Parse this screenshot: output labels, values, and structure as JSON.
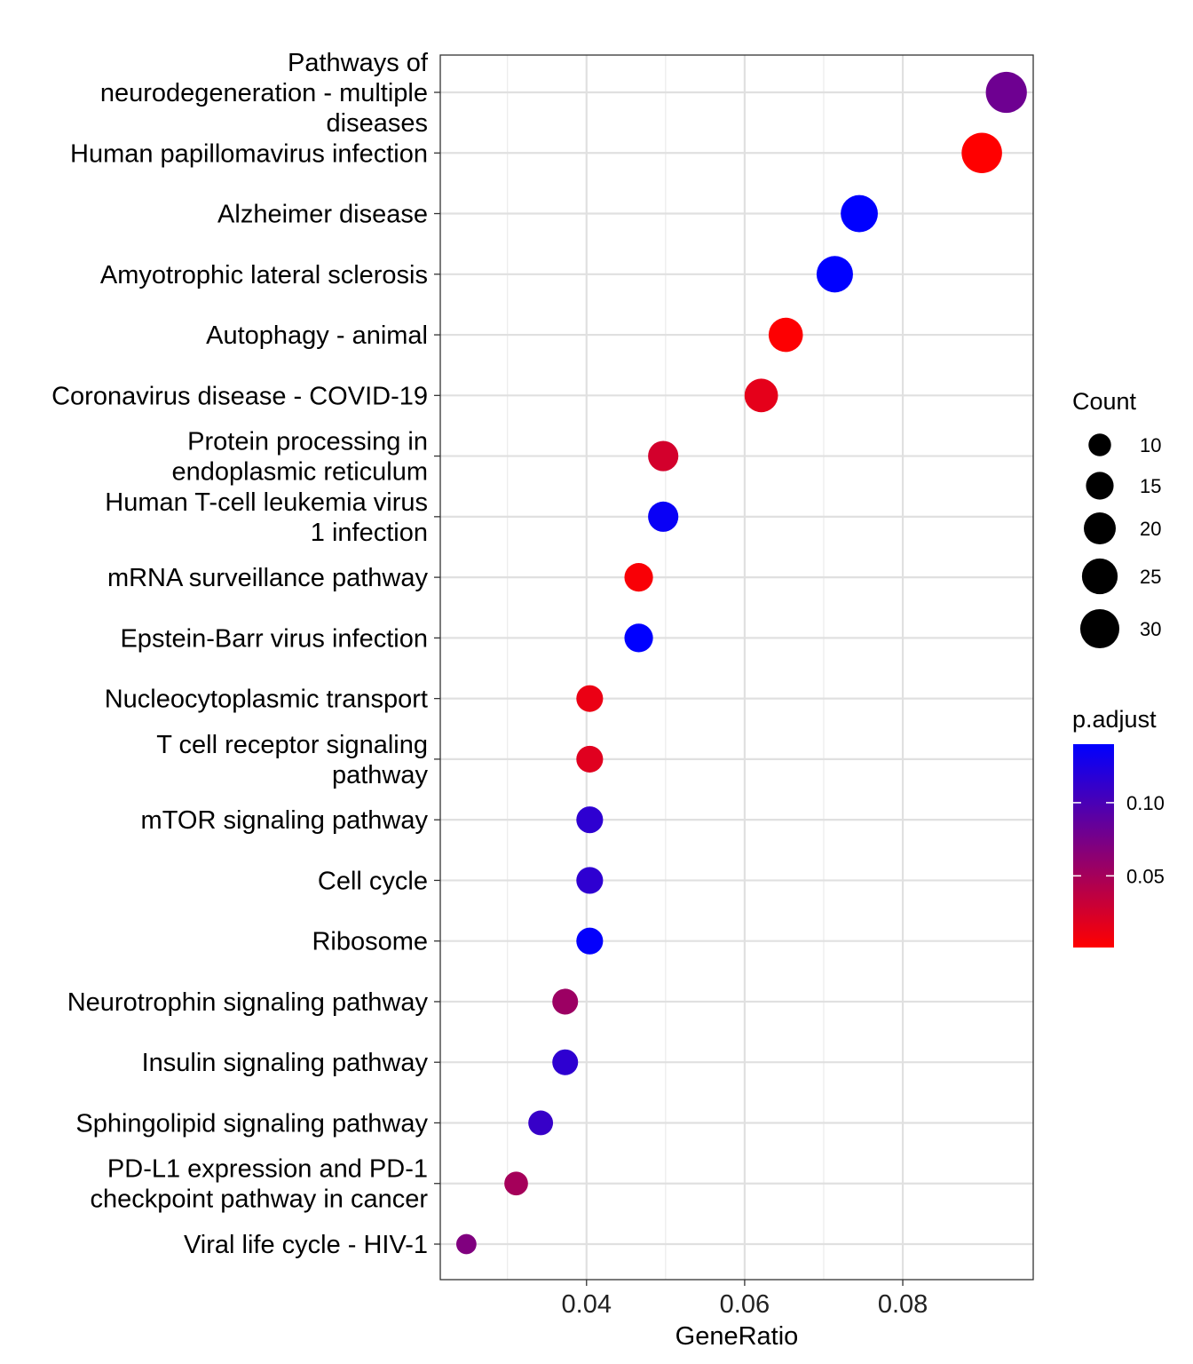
{
  "chart_data": {
    "type": "scatter",
    "title": "",
    "xlabel": "GeneRatio",
    "ylabel": "",
    "xlim": [
      0.0215,
      0.0965
    ],
    "x_ticks": [
      "0.04",
      "0.06",
      "0.08"
    ],
    "x_tick_values": [
      0.04,
      0.06,
      0.08
    ],
    "grid": true,
    "legend_placement": "right",
    "points": [
      {
        "label": [
          "Pathways of",
          "neurodegeneration - multiple",
          "diseases"
        ],
        "x": 0.0931,
        "count": 33,
        "p_adjust": 0.08
      },
      {
        "label": [
          "Human papillomavirus infection"
        ],
        "x": 0.09,
        "count": 32,
        "p_adjust": 0.001
      },
      {
        "label": [
          "Alzheimer disease"
        ],
        "x": 0.0745,
        "count": 27,
        "p_adjust": 0.14
      },
      {
        "label": [
          "Amyotrophic lateral sclerosis"
        ],
        "x": 0.0714,
        "count": 26,
        "p_adjust": 0.14
      },
      {
        "label": [
          "Autophagy - animal"
        ],
        "x": 0.0652,
        "count": 23,
        "p_adjust": 0.002
      },
      {
        "label": [
          "Coronavirus disease - COVID-19"
        ],
        "x": 0.0621,
        "count": 22,
        "p_adjust": 0.015
      },
      {
        "label": [
          "Protein processing in",
          "endoplasmic reticulum"
        ],
        "x": 0.0497,
        "count": 18,
        "p_adjust": 0.025
      },
      {
        "label": [
          "Human T-cell leukemia virus",
          "1 infection"
        ],
        "x": 0.0497,
        "count": 18,
        "p_adjust": 0.135
      },
      {
        "label": [
          "mRNA surveillance pathway"
        ],
        "x": 0.0466,
        "count": 16,
        "p_adjust": 0.004
      },
      {
        "label": [
          "Epstein-Barr virus infection"
        ],
        "x": 0.0466,
        "count": 16,
        "p_adjust": 0.14
      },
      {
        "label": [
          "Nucleocytoplasmic transport"
        ],
        "x": 0.0404,
        "count": 14,
        "p_adjust": 0.012
      },
      {
        "label": [
          "T cell receptor signaling",
          "pathway"
        ],
        "x": 0.0404,
        "count": 14,
        "p_adjust": 0.018
      },
      {
        "label": [
          "mTOR signaling pathway"
        ],
        "x": 0.0404,
        "count": 14,
        "p_adjust": 0.115
      },
      {
        "label": [
          "Cell cycle"
        ],
        "x": 0.0404,
        "count": 14,
        "p_adjust": 0.115
      },
      {
        "label": [
          "Ribosome"
        ],
        "x": 0.0404,
        "count": 14,
        "p_adjust": 0.138
      },
      {
        "label": [
          "Neurotrophin signaling pathway"
        ],
        "x": 0.0373,
        "count": 13,
        "p_adjust": 0.055
      },
      {
        "label": [
          "Insulin signaling pathway"
        ],
        "x": 0.0373,
        "count": 13,
        "p_adjust": 0.115
      },
      {
        "label": [
          "Sphingolipid signaling pathway"
        ],
        "x": 0.0342,
        "count": 12,
        "p_adjust": 0.11
      },
      {
        "label": [
          "PD-L1 expression and PD-1",
          "checkpoint pathway in cancer"
        ],
        "x": 0.0311,
        "count": 11,
        "p_adjust": 0.05
      },
      {
        "label": [
          "Viral life cycle - HIV-1"
        ],
        "x": 0.0248,
        "count": 8,
        "p_adjust": 0.07
      }
    ],
    "size_legend": {
      "title": "Count",
      "labels": [
        "10",
        "15",
        "20",
        "25",
        "30"
      ],
      "values": [
        10,
        15,
        20,
        25,
        30
      ]
    },
    "color_legend": {
      "title": "p.adjust",
      "labels": [
        "0.10",
        "0.05"
      ],
      "values": [
        0.1,
        0.05
      ],
      "range": [
        0.001,
        0.14
      ],
      "low_color": "#FF0000",
      "high_color": "#0000FF"
    }
  }
}
